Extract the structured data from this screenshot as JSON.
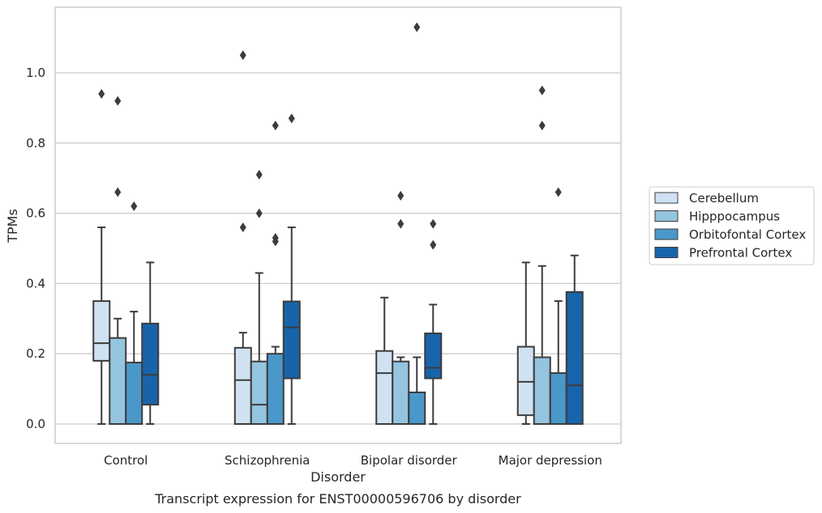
{
  "caption": "Transcript expression for ENST00000596706 by disorder",
  "chart_data": {
    "type": "box",
    "xlabel": "Disorder",
    "ylabel": "TPMs",
    "ylim": [
      -0.055,
      1.19
    ],
    "yticks": [
      0.0,
      0.2,
      0.4,
      0.6,
      0.8,
      1.0
    ],
    "ytick_labels": [
      "0.0",
      "0.2",
      "0.4",
      "0.6",
      "0.8",
      "1.0"
    ],
    "grid": "horizontal",
    "legend_position": "right",
    "categories": [
      "Control",
      "Schizophrenia",
      "Bipolar disorder",
      "Major depression"
    ],
    "series": [
      {
        "name": "Cerebellum",
        "color": "#d0e1f2",
        "boxes": [
          {
            "whislo": 0.0,
            "q1": 0.18,
            "med": 0.23,
            "q3": 0.35,
            "whishi": 0.56,
            "fliers": [
              0.94
            ]
          },
          {
            "whislo": 0.0,
            "q1": 0.0,
            "med": 0.125,
            "q3": 0.217,
            "whishi": 0.26,
            "fliers": [
              1.05,
              0.56
            ]
          },
          {
            "whislo": 0.0,
            "q1": 0.0,
            "med": 0.145,
            "q3": 0.208,
            "whishi": 0.36,
            "fliers": []
          },
          {
            "whislo": 0.0,
            "q1": 0.025,
            "med": 0.12,
            "q3": 0.22,
            "whishi": 0.46,
            "fliers": []
          }
        ]
      },
      {
        "name": "Hipppocampus",
        "color": "#94c4df",
        "boxes": [
          {
            "whislo": 0.0,
            "q1": 0.0,
            "med": 0.0,
            "q3": 0.245,
            "whishi": 0.3,
            "fliers": [
              0.92,
              0.66
            ]
          },
          {
            "whislo": 0.0,
            "q1": 0.0,
            "med": 0.055,
            "q3": 0.178,
            "whishi": 0.43,
            "fliers": [
              0.71,
              0.6
            ]
          },
          {
            "whislo": 0.0,
            "q1": 0.0,
            "med": 0.0,
            "q3": 0.178,
            "whishi": 0.19,
            "fliers": [
              0.65,
              0.57
            ]
          },
          {
            "whislo": 0.0,
            "q1": 0.0,
            "med": 0.0,
            "q3": 0.19,
            "whishi": 0.45,
            "fliers": [
              0.95,
              0.85
            ]
          }
        ]
      },
      {
        "name": "Orbitofontal Cortex",
        "color": "#4a98c9",
        "boxes": [
          {
            "whislo": 0.0,
            "q1": 0.0,
            "med": 0.0,
            "q3": 0.175,
            "whishi": 0.32,
            "fliers": [
              0.62
            ]
          },
          {
            "whislo": 0.0,
            "q1": 0.0,
            "med": 0.0,
            "q3": 0.2,
            "whishi": 0.22,
            "fliers": [
              0.85,
              0.53,
              0.52
            ]
          },
          {
            "whislo": 0.0,
            "q1": 0.0,
            "med": 0.0,
            "q3": 0.09,
            "whishi": 0.19,
            "fliers": [
              1.13
            ]
          },
          {
            "whislo": 0.0,
            "q1": 0.0,
            "med": 0.0,
            "q3": 0.145,
            "whishi": 0.35,
            "fliers": [
              0.66
            ]
          }
        ]
      },
      {
        "name": "Prefrontal Cortex",
        "color": "#1764ab",
        "boxes": [
          {
            "whislo": 0.0,
            "q1": 0.055,
            "med": 0.14,
            "q3": 0.286,
            "whishi": 0.46,
            "fliers": []
          },
          {
            "whislo": 0.0,
            "q1": 0.13,
            "med": 0.275,
            "q3": 0.349,
            "whishi": 0.56,
            "fliers": [
              0.87
            ]
          },
          {
            "whislo": 0.0,
            "q1": 0.13,
            "med": 0.16,
            "q3": 0.258,
            "whishi": 0.34,
            "fliers": [
              0.57,
              0.51
            ]
          },
          {
            "whislo": 0.0,
            "q1": 0.0,
            "med": 0.11,
            "q3": 0.376,
            "whishi": 0.48,
            "fliers": []
          }
        ]
      }
    ]
  }
}
